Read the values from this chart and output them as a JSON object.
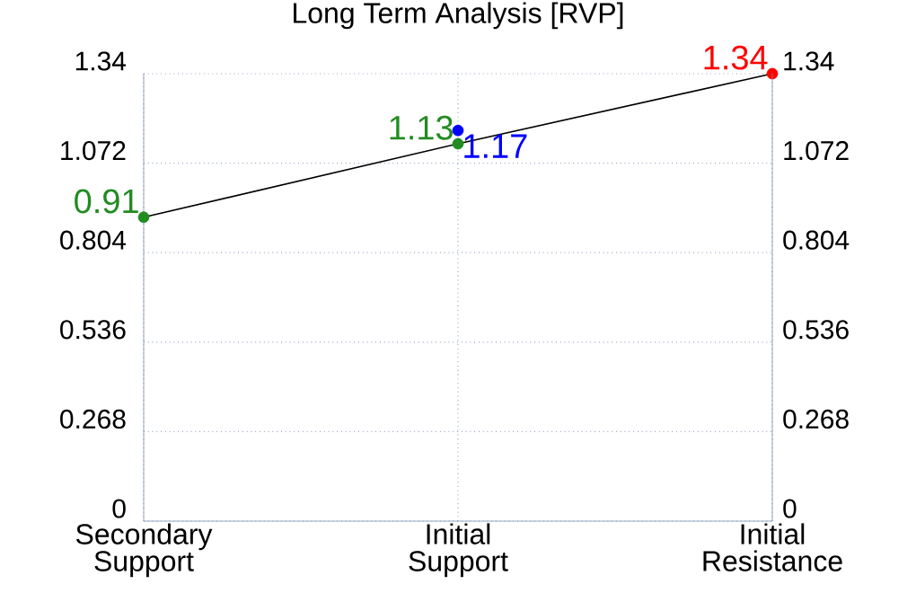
{
  "chart_data": {
    "type": "line",
    "title": "Long Term Analysis [RVP]",
    "categories": [
      "Secondary Support",
      "Initial Support",
      "Initial Resistance"
    ],
    "series": [
      {
        "type": "line",
        "color": "#000000",
        "colors": [
          "#228b22",
          "#228b22",
          "#ff0000"
        ],
        "values": [
          0.91,
          1.13,
          1.34
        ]
      },
      {
        "type": "scatter",
        "color": "#0000ff",
        "values": [
          null,
          1.17,
          null
        ]
      }
    ],
    "ylim": [
      0,
      1.34
    ],
    "yticks": [
      0,
      0.268,
      0.536,
      0.804,
      1.072,
      1.34
    ],
    "y2lim": [
      0,
      1.34
    ],
    "y2ticks": [
      0,
      0.268,
      0.536,
      0.804,
      1.072,
      1.34
    ],
    "grid": true,
    "marker": "circle",
    "data_labels": true
  }
}
